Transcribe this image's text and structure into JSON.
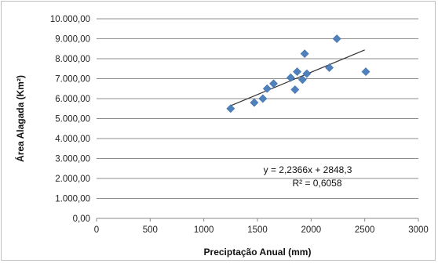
{
  "chart_data": {
    "type": "scatter",
    "xlabel": "Preciptação Anual (mm)",
    "ylabel": "Área Alagada (Km²)",
    "xlim": [
      0,
      3000
    ],
    "ylim": [
      0,
      10000
    ],
    "x_ticks": [
      0,
      500,
      1000,
      1500,
      2000,
      2500,
      3000
    ],
    "x_tick_labels": [
      "0",
      "500",
      "1000",
      "1500",
      "2000",
      "2500",
      "3000"
    ],
    "y_ticks": [
      0,
      1000,
      2000,
      3000,
      4000,
      5000,
      6000,
      7000,
      8000,
      9000,
      10000
    ],
    "y_tick_labels": [
      "0,00",
      "1.000,00",
      "2.000,00",
      "3.000,00",
      "4.000,00",
      "5.000,00",
      "6.000,00",
      "7.000,00",
      "8.000,00",
      "9.000,00",
      "10.000,00"
    ],
    "grid": "horizontal",
    "marker_color": "#4f81bd",
    "trendline_color": "#333333",
    "points": [
      {
        "x": 1250,
        "y": 5500
      },
      {
        "x": 1470,
        "y": 5800
      },
      {
        "x": 1550,
        "y": 6000
      },
      {
        "x": 1590,
        "y": 6500
      },
      {
        "x": 1650,
        "y": 6750
      },
      {
        "x": 1810,
        "y": 7050
      },
      {
        "x": 1850,
        "y": 6450
      },
      {
        "x": 1870,
        "y": 7350
      },
      {
        "x": 1920,
        "y": 6950
      },
      {
        "x": 1940,
        "y": 8250
      },
      {
        "x": 1960,
        "y": 7250
      },
      {
        "x": 2170,
        "y": 7550
      },
      {
        "x": 2240,
        "y": 9000
      },
      {
        "x": 2510,
        "y": 7350
      }
    ],
    "trendline": {
      "slope": 2.2366,
      "intercept": 2848.3,
      "x_range": [
        1250,
        2500
      ],
      "equation_label": "y = 2,2366x + 2848,3",
      "r2_label": "R² = 0,6058"
    }
  }
}
